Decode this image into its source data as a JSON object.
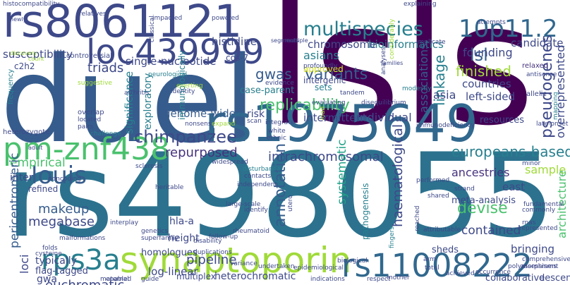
{
  "words": [
    "lsls",
    "duel",
    "rs498055",
    "rs8061121",
    "rs1975649",
    "pm-znf438",
    "louis",
    "synaptoporin",
    "rps3a",
    "rs11008222",
    "loc439999",
    "multispecies",
    "10p11.2",
    "bioinformatics",
    "chromosome",
    "lsl",
    "pseudogenes",
    "overrepresented",
    "countries",
    "founding",
    "candidate",
    "finished",
    "left-sided",
    "variants",
    "gwas",
    "asians",
    "associations",
    "linkage",
    "triads",
    "single-nucleotide",
    "histidine",
    "susceptibility",
    "replicability",
    "chimpanzee",
    "genome-wide",
    "repurposed",
    "intrachromosomal",
    "europeans-based",
    "annotation",
    "systematic",
    "haematological",
    "ancestries",
    "east",
    "devise",
    "contained",
    "sample",
    "architecture",
    "makeup",
    "megabase",
    "empirical",
    "pericentromeric",
    "euchromatic",
    "pipeline",
    "log-linear",
    "homologues",
    "flag-tagged",
    "typically",
    "gwa",
    "loci",
    "heterochromatic",
    "multiplex",
    "collaborative",
    "descent",
    "bringing",
    "meta-analysis",
    "intermittent",
    "individual",
    "asia",
    "resources",
    "exploratory",
    "significance",
    "immunologically",
    "cos-7",
    "case-parent",
    "risk",
    "sets",
    "intergenic",
    "approved",
    "hla-a",
    "height",
    "inter",
    "refined",
    "c2h2",
    "sheds",
    "pathogenesis",
    "histocompatibility",
    "newly",
    "relatives",
    "controversial",
    "count",
    "discovery",
    "frequency",
    "suggestive",
    "overlap",
    "located",
    "pairs",
    "arthritis",
    "neurological",
    "identity",
    "evaluating",
    "disequilibrium",
    "modestly",
    "tandem",
    "families",
    "explaining",
    "attempts",
    "relaxed",
    "antisense",
    "allelic",
    "mapping",
    "late-onset",
    "heterozygote",
    "adult",
    "sclerosis",
    "widespread",
    "disturbance",
    "contacts",
    "performed",
    "strand",
    "minor",
    "fundamental",
    "commonly",
    "rnas",
    "represented",
    "comprehensive",
    "assessment",
    "polymorphisms",
    "occurrence",
    "achieved",
    "arm",
    "respect",
    "indications",
    "maternal",
    "biological",
    "epidemiological",
    "undertaken",
    "variance",
    "duplications",
    "disability",
    "superfamily",
    "genetics",
    "interplay",
    "noncoding",
    "heritable",
    "malformations",
    "folds",
    "cysteine",
    "enabled",
    "guide",
    "mother",
    "total",
    "attributable",
    "fingers",
    "reached",
    "rheumatoid",
    "independent",
    "large-scale",
    "follow-up",
    "identify",
    "utero",
    "shared",
    "immunodeficiency",
    "load",
    "white",
    "ethnic",
    "integrate",
    "nonsense",
    "challenge",
    "expand",
    "scan",
    "everting",
    "evidence",
    "classical",
    "impacted",
    "powered",
    "profoundly",
    "analyses",
    "considerably",
    "implicate",
    "segments",
    "multiple"
  ]
}
